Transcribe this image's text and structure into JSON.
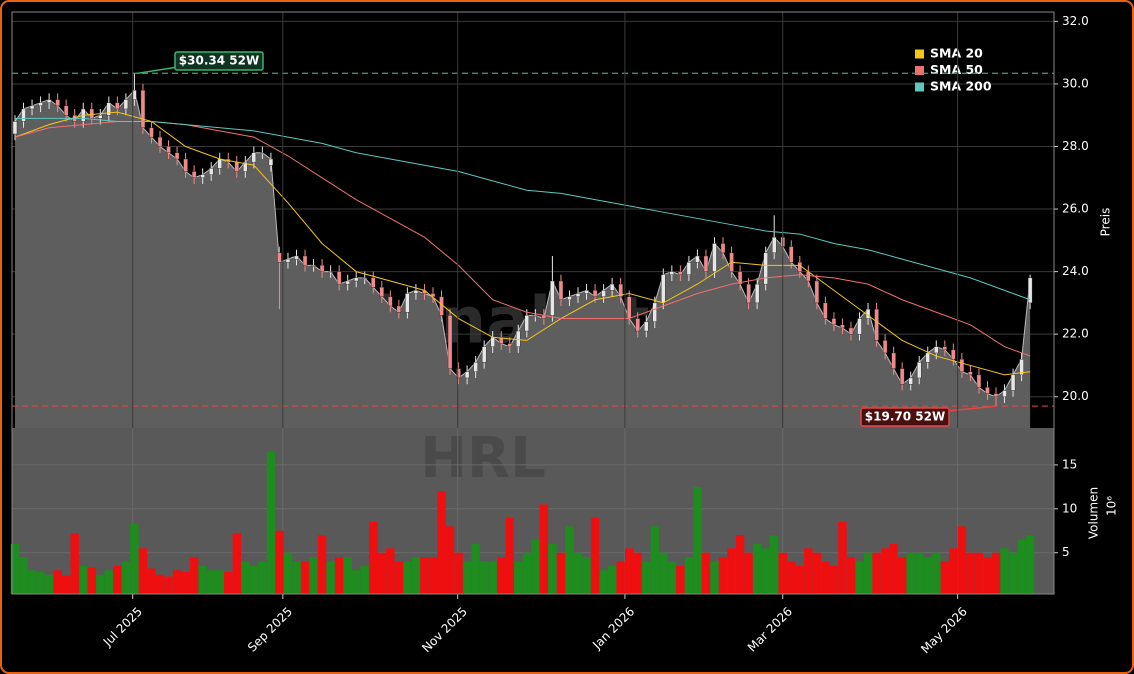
{
  "chart_data": [
    {
      "type": "candlestick",
      "ylabel": "Preis",
      "watermark": "forexsignale.trade",
      "xlim": [
        -0.35,
        121.8
      ],
      "ylim": [
        19.0,
        32.3
      ],
      "yticks": [
        {
          "value": 20,
          "label": "20.0"
        },
        {
          "value": 22,
          "label": "22.0"
        },
        {
          "value": 24,
          "label": "24.0"
        },
        {
          "value": 26,
          "label": "26.0"
        },
        {
          "value": 28,
          "label": "28.0"
        },
        {
          "value": 30,
          "label": "30.0"
        },
        {
          "value": 32,
          "label": "32.0"
        }
      ],
      "grid": true,
      "up_color": "#e6e6e6",
      "down_color": "#f08a8a",
      "area_color": "#5e5e5e",
      "open": [
        28.4,
        28.8,
        29.2,
        29.3,
        29.4,
        29.5,
        29.3,
        29.0,
        28.8,
        29.2,
        28.9,
        29.0,
        29.4,
        29.2,
        29.5,
        29.8,
        28.6,
        28.3,
        28.0,
        27.8,
        27.6,
        27.2,
        27.0,
        27.1,
        27.3,
        27.6,
        27.5,
        27.2,
        27.5,
        27.8,
        27.4,
        24.6,
        24.3,
        24.4,
        24.5,
        24.2,
        24.2,
        24.0,
        24.0,
        23.6,
        23.7,
        23.8,
        23.8,
        23.5,
        23.2,
        22.9,
        22.7,
        23.3,
        23.4,
        23.3,
        23.2,
        22.6,
        20.9,
        20.6,
        20.8,
        21.1,
        21.6,
        21.9,
        21.7,
        21.6,
        22.1,
        22.6,
        22.6,
        22.6,
        23.7,
        23.1,
        23.2,
        23.3,
        23.4,
        23.2,
        23.4,
        23.6,
        23.2,
        22.5,
        22.1,
        22.4,
        23.0,
        23.9,
        24.0,
        23.9,
        24.3,
        24.5,
        24.0,
        24.9,
        24.6,
        24.0,
        23.6,
        23.0,
        23.6,
        24.6,
        25.1,
        24.8,
        24.3,
        24.0,
        23.7,
        23.0,
        22.5,
        22.3,
        22.2,
        22.0,
        22.5,
        22.8,
        21.8,
        21.4,
        20.9,
        20.4,
        20.6,
        21.1,
        21.4,
        21.6,
        21.5,
        21.2,
        20.8,
        20.7,
        20.3,
        20.1,
        20.0,
        20.2,
        20.7,
        23.0
      ],
      "high": [
        29.0,
        29.4,
        29.5,
        29.6,
        29.7,
        29.7,
        29.5,
        29.2,
        29.4,
        29.4,
        29.2,
        29.6,
        29.6,
        29.7,
        30.34,
        30.0,
        28.8,
        28.5,
        28.2,
        28.0,
        27.8,
        27.4,
        27.3,
        27.5,
        27.8,
        27.8,
        27.7,
        27.7,
        28.0,
        28.0,
        27.8,
        24.8,
        24.6,
        24.7,
        24.7,
        24.4,
        24.4,
        24.2,
        24.2,
        23.9,
        24.0,
        24.0,
        24.0,
        23.7,
        23.4,
        23.1,
        23.5,
        23.6,
        23.6,
        23.5,
        23.4,
        22.8,
        21.1,
        21.0,
        21.3,
        21.8,
        22.1,
        22.1,
        21.9,
        22.3,
        22.8,
        22.8,
        22.8,
        24.5,
        23.9,
        23.4,
        23.5,
        23.6,
        23.6,
        23.6,
        23.8,
        23.8,
        23.4,
        22.7,
        22.6,
        23.2,
        24.1,
        24.2,
        24.2,
        24.5,
        24.7,
        24.7,
        25.1,
        25.1,
        24.8,
        24.2,
        23.8,
        23.8,
        24.8,
        25.8,
        25.3,
        25.0,
        24.5,
        24.2,
        23.9,
        23.2,
        22.7,
        22.5,
        22.4,
        22.7,
        23.0,
        23.0,
        22.0,
        21.6,
        21.1,
        20.8,
        21.3,
        21.6,
        21.8,
        21.8,
        21.7,
        21.4,
        21.0,
        20.9,
        20.5,
        20.3,
        20.4,
        20.9,
        21.4,
        23.9
      ],
      "low": [
        28.2,
        28.6,
        29.0,
        29.1,
        29.2,
        29.1,
        28.8,
        28.6,
        28.6,
        28.7,
        28.7,
        28.8,
        29.0,
        29.0,
        29.3,
        28.4,
        28.1,
        27.8,
        27.6,
        27.4,
        27.0,
        26.8,
        26.8,
        26.9,
        27.1,
        27.3,
        27.0,
        27.0,
        27.3,
        27.6,
        27.2,
        22.8,
        24.1,
        24.2,
        24.0,
        24.0,
        23.8,
        23.8,
        23.4,
        23.4,
        23.5,
        23.6,
        23.3,
        23.0,
        22.7,
        22.5,
        22.5,
        23.1,
        23.1,
        23.0,
        22.4,
        20.7,
        20.4,
        20.4,
        20.6,
        20.9,
        21.4,
        21.5,
        21.4,
        21.4,
        21.9,
        22.4,
        22.3,
        22.4,
        22.9,
        22.9,
        23.0,
        23.1,
        23.0,
        23.0,
        23.2,
        23.0,
        22.3,
        21.9,
        21.9,
        22.2,
        22.8,
        23.7,
        23.7,
        23.7,
        24.1,
        23.8,
        23.8,
        24.4,
        23.8,
        23.4,
        22.8,
        22.8,
        23.4,
        24.4,
        24.6,
        24.1,
        23.8,
        23.5,
        22.8,
        22.3,
        22.1,
        22.0,
        21.8,
        21.8,
        22.3,
        21.6,
        21.2,
        20.7,
        20.2,
        20.2,
        20.4,
        20.9,
        21.2,
        21.3,
        21.0,
        20.6,
        20.5,
        20.1,
        19.9,
        19.7,
        19.8,
        20.0,
        20.5,
        22.8
      ],
      "close": [
        28.8,
        29.2,
        29.3,
        29.4,
        29.5,
        29.3,
        29.0,
        28.8,
        29.2,
        28.9,
        29.0,
        29.4,
        29.2,
        29.5,
        29.8,
        28.6,
        28.3,
        28.0,
        27.8,
        27.6,
        27.2,
        27.0,
        27.1,
        27.3,
        27.6,
        27.5,
        27.2,
        27.5,
        27.8,
        27.8,
        27.6,
        24.3,
        24.4,
        24.5,
        24.2,
        24.2,
        24.0,
        24.0,
        23.6,
        23.7,
        23.8,
        23.8,
        23.5,
        23.2,
        22.9,
        22.7,
        23.3,
        23.4,
        23.3,
        23.2,
        22.6,
        20.9,
        20.6,
        20.8,
        21.1,
        21.6,
        21.9,
        21.7,
        21.6,
        22.1,
        22.6,
        22.6,
        22.5,
        23.7,
        23.1,
        23.2,
        23.3,
        23.4,
        23.2,
        23.4,
        23.6,
        23.2,
        22.5,
        22.1,
        22.4,
        23.0,
        23.9,
        24.0,
        23.9,
        24.3,
        24.5,
        24.0,
        24.9,
        24.6,
        24.0,
        23.6,
        23.0,
        23.6,
        24.6,
        25.1,
        24.8,
        24.3,
        24.0,
        23.7,
        23.0,
        22.5,
        22.3,
        22.2,
        22.0,
        22.5,
        22.8,
        21.8,
        21.4,
        20.9,
        20.4,
        20.6,
        21.1,
        21.4,
        21.6,
        21.5,
        21.2,
        20.8,
        20.7,
        20.3,
        20.1,
        20.0,
        20.2,
        20.7,
        21.2,
        23.8
      ],
      "series": [
        {
          "name": "SMA 20",
          "color": "#f5c518",
          "x": [
            0,
            4,
            8,
            12,
            16,
            20,
            24,
            28,
            32,
            36,
            40,
            44,
            48,
            52,
            56,
            60,
            64,
            68,
            72,
            76,
            80,
            84,
            88,
            92,
            96,
            100,
            104,
            108,
            112,
            116,
            119
          ],
          "values": [
            28.3,
            28.7,
            29.0,
            29.1,
            28.8,
            28.0,
            27.6,
            27.4,
            26.2,
            24.9,
            24.0,
            23.7,
            23.4,
            22.5,
            21.9,
            21.8,
            22.5,
            23.1,
            23.3,
            23.0,
            23.6,
            24.3,
            24.2,
            24.2,
            23.4,
            22.6,
            21.8,
            21.3,
            21.0,
            20.7,
            20.8
          ]
        },
        {
          "name": "SMA 50",
          "color": "#f07070",
          "x": [
            0,
            4,
            8,
            12,
            16,
            20,
            24,
            28,
            32,
            36,
            40,
            44,
            48,
            52,
            56,
            60,
            64,
            68,
            72,
            76,
            80,
            84,
            88,
            92,
            96,
            100,
            104,
            108,
            112,
            116,
            119
          ],
          "values": [
            28.3,
            28.6,
            28.7,
            28.8,
            28.8,
            28.7,
            28.5,
            28.3,
            27.7,
            27.0,
            26.3,
            25.7,
            25.1,
            24.2,
            23.1,
            22.7,
            22.5,
            22.5,
            22.5,
            22.9,
            23.3,
            23.6,
            23.8,
            23.9,
            23.8,
            23.6,
            23.1,
            22.7,
            22.3,
            21.6,
            21.3
          ]
        },
        {
          "name": "SMA 200",
          "color": "#5cc8c0",
          "x": [
            0,
            4,
            8,
            12,
            16,
            20,
            24,
            28,
            32,
            36,
            40,
            44,
            48,
            52,
            56,
            60,
            64,
            68,
            72,
            76,
            80,
            84,
            88,
            92,
            96,
            100,
            104,
            108,
            112,
            116,
            119
          ],
          "values": [
            28.9,
            28.9,
            28.9,
            28.8,
            28.8,
            28.7,
            28.6,
            28.5,
            28.3,
            28.1,
            27.8,
            27.6,
            27.4,
            27.2,
            26.9,
            26.6,
            26.5,
            26.3,
            26.1,
            25.9,
            25.7,
            25.5,
            25.3,
            25.2,
            24.9,
            24.7,
            24.4,
            24.1,
            23.8,
            23.4,
            23.1
          ]
        }
      ],
      "annotations": [
        {
          "text": "$30.34 52W",
          "value": 30.34,
          "color": "#3cb371"
        },
        {
          "text": "$19.70 52W",
          "value": 19.7,
          "color": "#e04848"
        }
      ]
    },
    {
      "type": "bar",
      "ylabel": "Volumen",
      "offset_label": "10⁶",
      "watermark": "HRL",
      "xlim": [
        -0.35,
        121.8
      ],
      "ylim": [
        0.3,
        19.2
      ],
      "yticks": [
        5,
        10,
        15
      ],
      "grid": true,
      "up_color": "#1e8c1e",
      "down_color": "#ee1010",
      "xticks": [
        {
          "value": 13.8,
          "label": "Jul 2025"
        },
        {
          "value": 31.4,
          "label": "Sep 2025"
        },
        {
          "value": 51.9,
          "label": "Nov 2025"
        },
        {
          "value": 71.5,
          "label": "Jan 2026"
        },
        {
          "value": 90.0,
          "label": "Mar 2026"
        },
        {
          "value": 110.5,
          "label": "May 2026"
        }
      ],
      "values": [
        6,
        4.5,
        3,
        2.8,
        2.5,
        3,
        2.4,
        7.2,
        3.5,
        3.3,
        2.5,
        3,
        3.5,
        4,
        8.3,
        5.5,
        3.2,
        2.5,
        2.3,
        3,
        2.8,
        4.5,
        3.5,
        3,
        3,
        2.8,
        7.2,
        4,
        3.5,
        4,
        16.5,
        7.5,
        5,
        4,
        4,
        4.5,
        7,
        4,
        4.5,
        4.5,
        3,
        3.5,
        8.5,
        5,
        5.5,
        4,
        4,
        4.5,
        4.5,
        4.5,
        12,
        8,
        5,
        4,
        6,
        4,
        4,
        4.5,
        9,
        4,
        5,
        6.5,
        10.5,
        6,
        5,
        8,
        5,
        4.5,
        9,
        3,
        3.5,
        4,
        5.5,
        5,
        4,
        8,
        5,
        4,
        3.5,
        4.5,
        12.5,
        5,
        4,
        4.5,
        5.5,
        7,
        5,
        6,
        5.5,
        7,
        5,
        4,
        3.5,
        5.5,
        5,
        4,
        3.5,
        8.5,
        4.5,
        4,
        5,
        5,
        5.5,
        6,
        4.5,
        5,
        5,
        4.5,
        5,
        4,
        5.5,
        8,
        5,
        5,
        4.5,
        5,
        5.5,
        5,
        6.5,
        7
      ]
    }
  ]
}
